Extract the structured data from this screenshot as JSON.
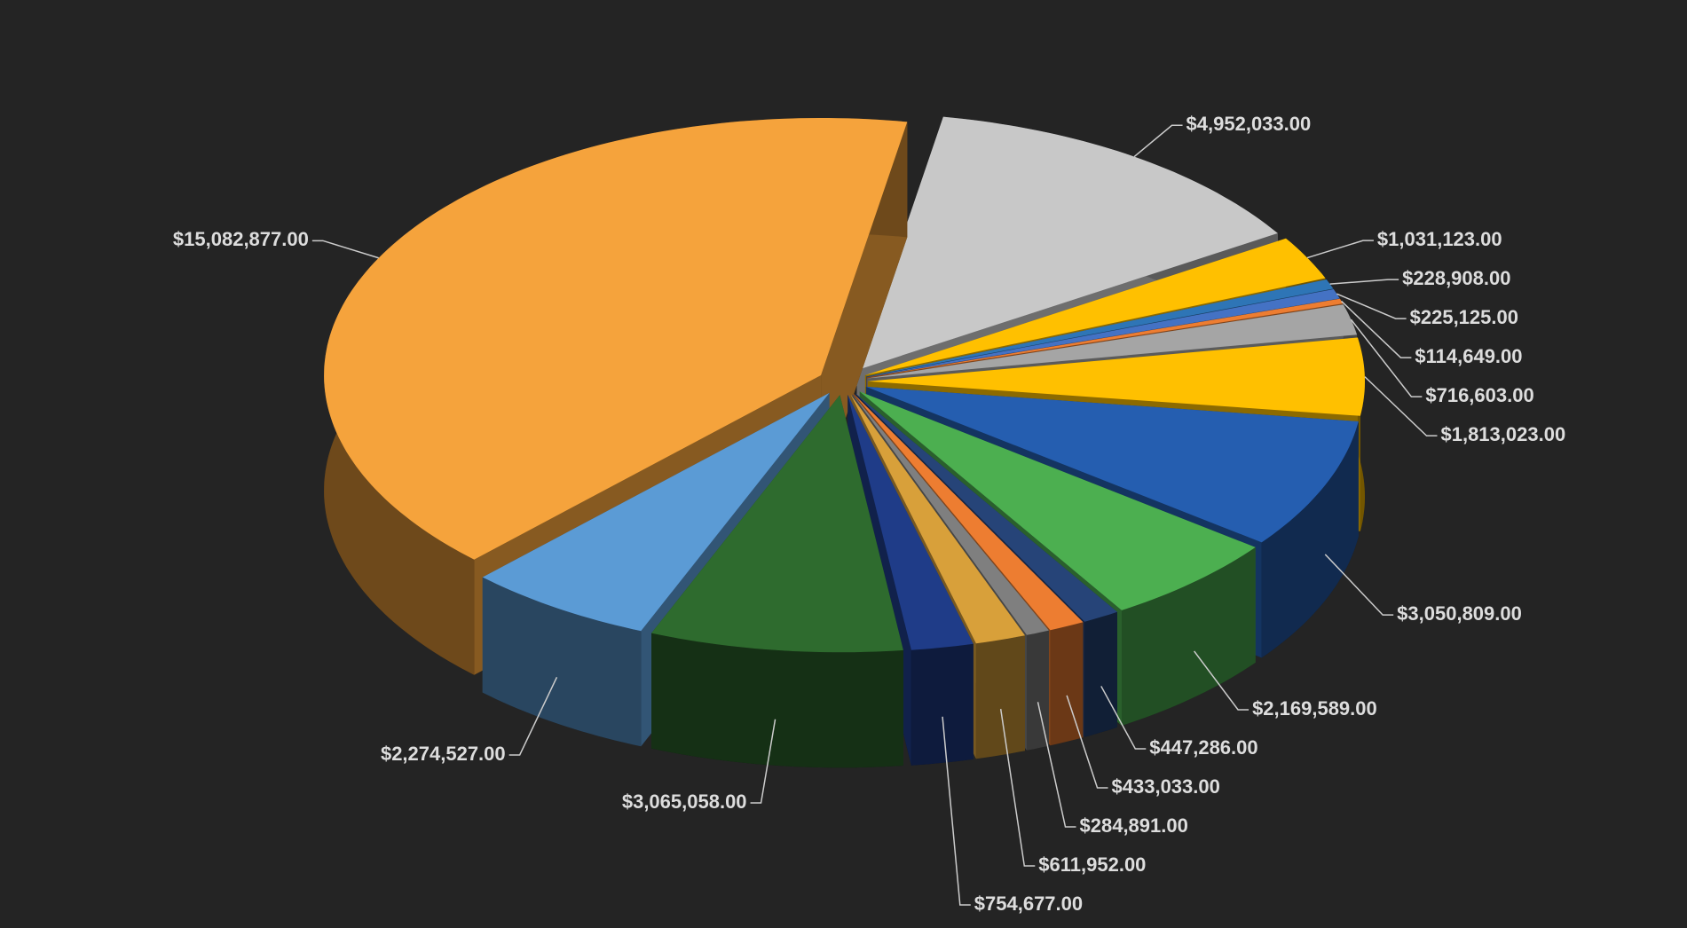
{
  "chart_data": {
    "type": "pie3d",
    "values": [
      4952033,
      1031123,
      228908,
      225125,
      114649,
      716603,
      1813023,
      3050809,
      2169589,
      447286,
      433033,
      284891,
      611952,
      754677,
      3065058,
      2274527,
      15082877
    ],
    "value_labels": [
      "$4,952,033.00",
      "$1,031,123.00",
      "$228,908.00",
      "$225,125.00",
      "$114,649.00",
      "$716,603.00",
      "$1,813,023.00",
      "$3,050,809.00",
      "$2,169,589.00",
      "$447,286.00",
      "$433,033.00",
      "$284,891.00",
      "$611,952.00",
      "$754,677.00",
      "$3,065,058.00",
      "$2,274,527.00",
      "$15,082,877.00"
    ],
    "colors": [
      "#c8c8c8",
      "#ffc000",
      "#2e75b6",
      "#4472c4",
      "#ed7d31",
      "#a5a5a5",
      "#ffc000",
      "#255eb0",
      "#4caf50",
      "#264478",
      "#ed7d31",
      "#7f7f7f",
      "#d8a03a",
      "#1f3c88",
      "#2e6b2e",
      "#5b9bd5",
      "#f5a33c"
    ]
  }
}
